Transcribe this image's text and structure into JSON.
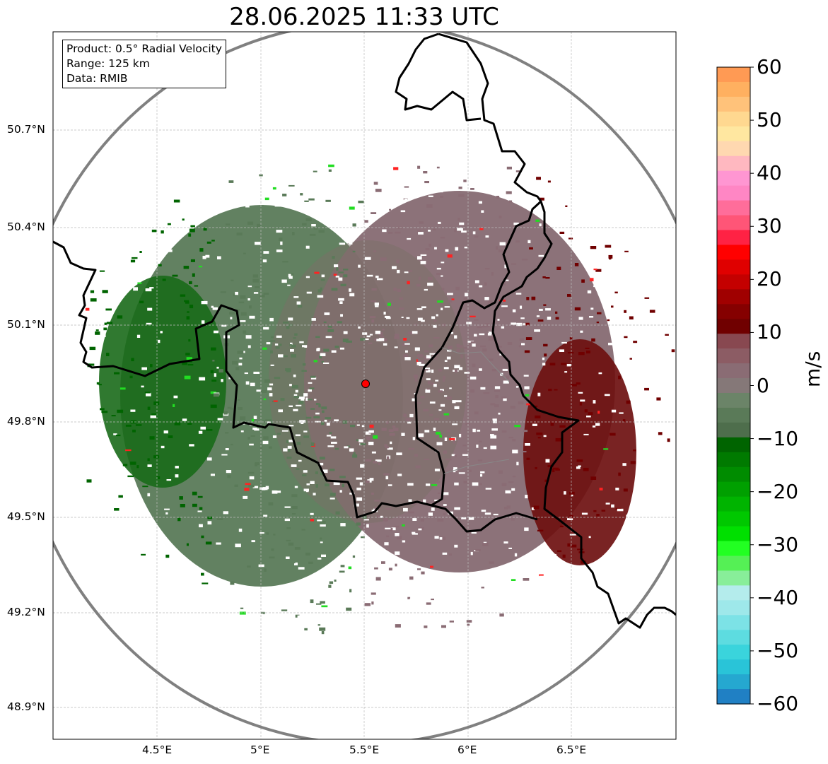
{
  "title": "28.06.2025 11:33 UTC",
  "info": {
    "product": "Product: 0.5° Radial Velocity",
    "range": "Range: 125 km",
    "data": "Data: RMIB"
  },
  "latitude_labels": [
    "50.7°N",
    "50.4°N",
    "50.1°N",
    "49.8°N",
    "49.5°N",
    "49.2°N",
    "48.9°N"
  ],
  "longitude_labels": [
    "4.5°E",
    "5°E",
    "5.5°E",
    "6°E",
    "6.5°E"
  ],
  "colorbar": {
    "unit": "m/s",
    "min": -60,
    "max": 60,
    "ticks": [
      "60",
      "50",
      "40",
      "30",
      "20",
      "10",
      "0",
      "−10",
      "−20",
      "−30",
      "−40",
      "−50",
      "−60"
    ],
    "colors_top_to_bottom": [
      "#ff9a54",
      "#ffb060",
      "#ffc27a",
      "#ffd890",
      "#ffe7a0",
      "#ffd8b0",
      "#ffb8c0",
      "#ff96d2",
      "#ff86c4",
      "#ff6d9a",
      "#ff5577",
      "#ff2244",
      "#ff0000",
      "#e00000",
      "#c40000",
      "#a00000",
      "#850000",
      "#700000",
      "#884850",
      "#8c5c64",
      "#8a6c74",
      "#857878",
      "#6b8468",
      "#5a7a58",
      "#4e6e4c",
      "#006400",
      "#007a00",
      "#008c00",
      "#00a000",
      "#00b400",
      "#00c800",
      "#00e000",
      "#22ff22",
      "#55f055",
      "#88ee99",
      "#b4ecec",
      "#9ee8ea",
      "#7ce2e6",
      "#5ddce0",
      "#3ad4dc",
      "#29c4d8",
      "#25a8d0",
      "#2080c4"
    ]
  },
  "radar_site": {
    "name": "radar-site",
    "color": "#ff0000"
  },
  "colors": {
    "approaching_dark": "#006400",
    "approaching_gray": "#5a7a58",
    "receding_gray": "#8a6c74",
    "receding_dark": "#700000",
    "range_ring": "#808080",
    "border": "#000000"
  }
}
